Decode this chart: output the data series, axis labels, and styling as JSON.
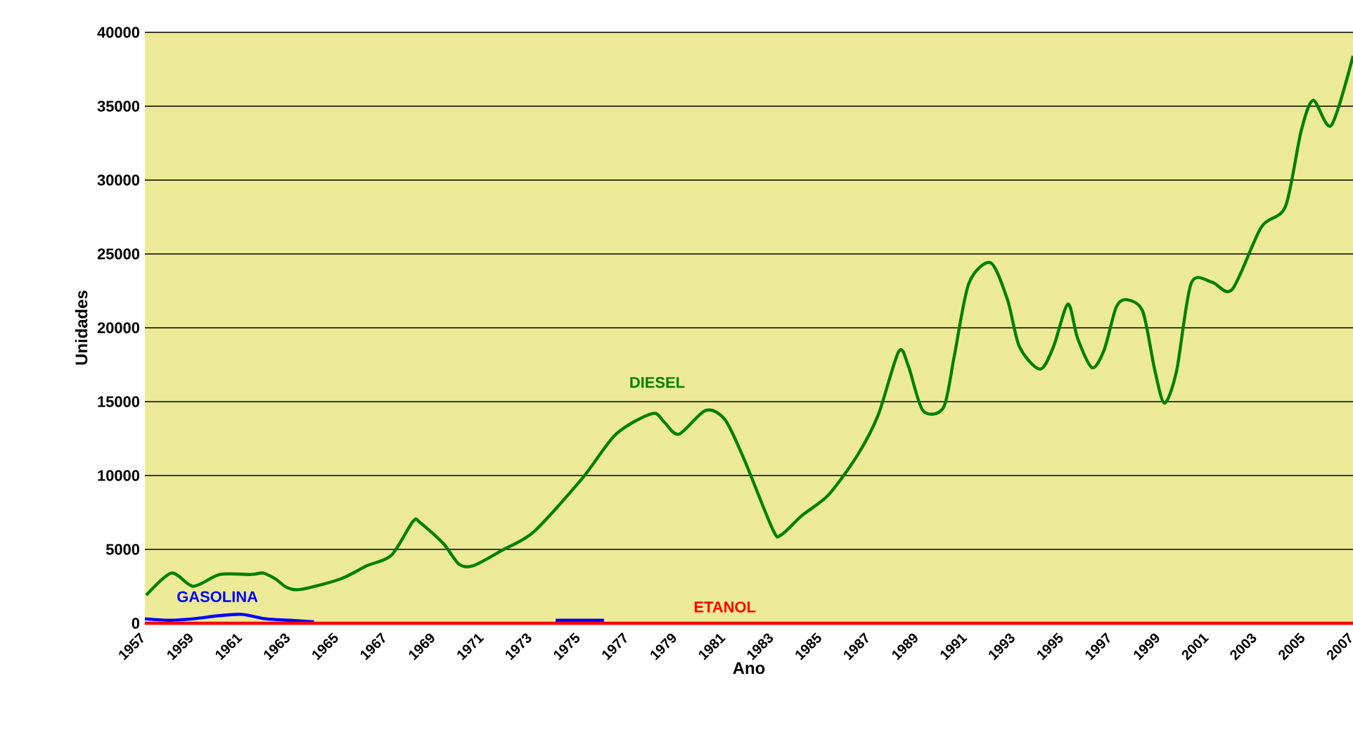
{
  "chart_data": {
    "type": "line",
    "xlabel": "Ano",
    "ylabel": "Unidades",
    "xlim": [
      1957,
      2007
    ],
    "xticks": [
      1957,
      1959,
      1961,
      1963,
      1965,
      1967,
      1969,
      1971,
      1973,
      1975,
      1977,
      1979,
      1981,
      1983,
      1985,
      1987,
      1989,
      1991,
      1993,
      1995,
      1997,
      1999,
      2001,
      2003,
      2005,
      2007
    ],
    "ylim": [
      0,
      40000
    ],
    "yticks": [
      0,
      5000,
      10000,
      15000,
      20000,
      25000,
      30000,
      35000,
      40000
    ],
    "grid": "y",
    "series": [
      {
        "name": "DIESEL",
        "color": "#008000",
        "x": [
          1957.06,
          1958.1,
          1959.0,
          1960.1,
          1961.4,
          1961.9,
          1962.4,
          1962.9,
          1963.5,
          1965.1,
          1966.2,
          1967.2,
          1968.1,
          1968.4,
          1969.35,
          1970.0,
          1970.6,
          1971.85,
          1973.1,
          1975.1,
          1976.5,
          1978.0,
          1978.5,
          1979.1,
          1980.2,
          1981.0,
          1981.8,
          1983.0,
          1983.35,
          1984.2,
          1985.3,
          1986.5,
          1987.35,
          1988.2,
          1988.6,
          1989.2,
          1990.05,
          1990.5,
          1991.1,
          1992.0,
          1992.7,
          1993.2,
          1994.05,
          1994.6,
          1995.2,
          1995.6,
          1996.2,
          1996.7,
          1997.2,
          1997.65,
          1998.3,
          1998.8,
          1999.2,
          1999.7,
          2000.3,
          2001.15,
          2002.0,
          2003.2,
          2004.2,
          2004.85,
          2005.35,
          2006.1,
          2007.0
        ],
        "values": [
          1900,
          3400,
          2500,
          3300,
          3300,
          3400,
          3000,
          2400,
          2300,
          3000,
          3900,
          4600,
          6900,
          6800,
          5400,
          4000,
          3900,
          5000,
          6200,
          9800,
          12800,
          14200,
          13600,
          12800,
          14400,
          13800,
          11100,
          6300,
          6000,
          7300,
          8700,
          11400,
          14100,
          18400,
          17400,
          14400,
          14600,
          18100,
          23000,
          24400,
          21900,
          18700,
          17200,
          18700,
          21600,
          19300,
          17300,
          18500,
          21400,
          21900,
          21100,
          17100,
          14900,
          17100,
          23000,
          23100,
          22600,
          26800,
          28200,
          33300,
          35400,
          33700,
          38400
        ]
      },
      {
        "name": "GASOLINA",
        "color": "#0000ff",
        "x": [
          1957,
          1958,
          1959,
          1960,
          1961,
          1962,
          1963,
          1964,
          1969,
          1974,
          1975,
          1976
        ],
        "values": [
          300,
          200,
          300,
          500,
          600,
          300,
          200,
          100,
          null,
          200,
          200,
          200
        ]
      },
      {
        "name": "ETANOL",
        "color": "#ff0000",
        "x": [
          1957,
          2007
        ],
        "values": [
          0,
          0
        ]
      }
    ]
  }
}
